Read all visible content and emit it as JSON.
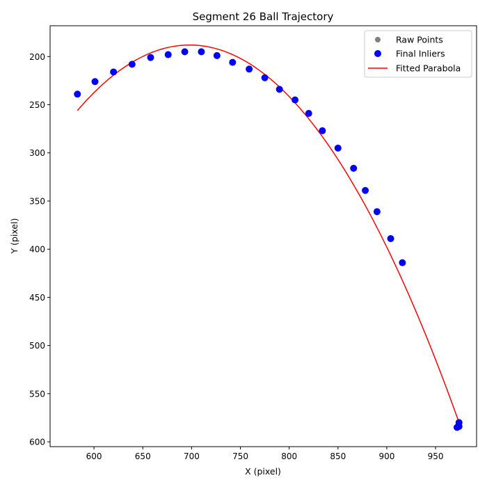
{
  "chart_data": {
    "type": "scatter",
    "title": "Segment 26 Ball Trajectory",
    "xlabel": "X (pixel)",
    "ylabel": "Y (pixel)",
    "xlim": [
      555,
      992
    ],
    "ylim": [
      605,
      168
    ],
    "y_inverted": true,
    "x_ticks": [
      600,
      650,
      700,
      750,
      800,
      850,
      900,
      950
    ],
    "y_ticks": [
      200,
      250,
      300,
      350,
      400,
      450,
      500,
      550,
      600
    ],
    "grid": false,
    "legend_position": "top-right",
    "series": [
      {
        "name": "Raw Points",
        "kind": "scatter",
        "color": "#808080",
        "points": [
          [
            583,
            239
          ],
          [
            601,
            226
          ],
          [
            620,
            216
          ],
          [
            639,
            208
          ],
          [
            658,
            201
          ],
          [
            676,
            198
          ],
          [
            693,
            195
          ],
          [
            710,
            195
          ],
          [
            726,
            199
          ],
          [
            742,
            206
          ],
          [
            759,
            213
          ],
          [
            775,
            222
          ],
          [
            790,
            234
          ],
          [
            806,
            245
          ],
          [
            820,
            259
          ],
          [
            834,
            277
          ],
          [
            850,
            295
          ],
          [
            866,
            316
          ],
          [
            878,
            339
          ],
          [
            890,
            361
          ],
          [
            904,
            389
          ],
          [
            916,
            414
          ],
          [
            972,
            585
          ],
          [
            974,
            584
          ],
          [
            974,
            580
          ]
        ]
      },
      {
        "name": "Final Inliers",
        "kind": "scatter",
        "color": "#0000ff",
        "points": [
          [
            583,
            239
          ],
          [
            601,
            226
          ],
          [
            620,
            216
          ],
          [
            639,
            208
          ],
          [
            658,
            201
          ],
          [
            676,
            198
          ],
          [
            693,
            195
          ],
          [
            710,
            195
          ],
          [
            726,
            199
          ],
          [
            742,
            206
          ],
          [
            759,
            213
          ],
          [
            775,
            222
          ],
          [
            790,
            234
          ],
          [
            806,
            245
          ],
          [
            820,
            259
          ],
          [
            834,
            277
          ],
          [
            850,
            295
          ],
          [
            866,
            316
          ],
          [
            878,
            339
          ],
          [
            890,
            361
          ],
          [
            904,
            389
          ],
          [
            916,
            414
          ],
          [
            972,
            585
          ],
          [
            974,
            584
          ],
          [
            974,
            580
          ]
        ]
      },
      {
        "name": "Fitted Parabola",
        "kind": "line",
        "color": "#ff0000",
        "vertex": [
          698,
          188
        ],
        "a": 0.005144,
        "x_range": [
          583,
          974
        ]
      }
    ]
  }
}
